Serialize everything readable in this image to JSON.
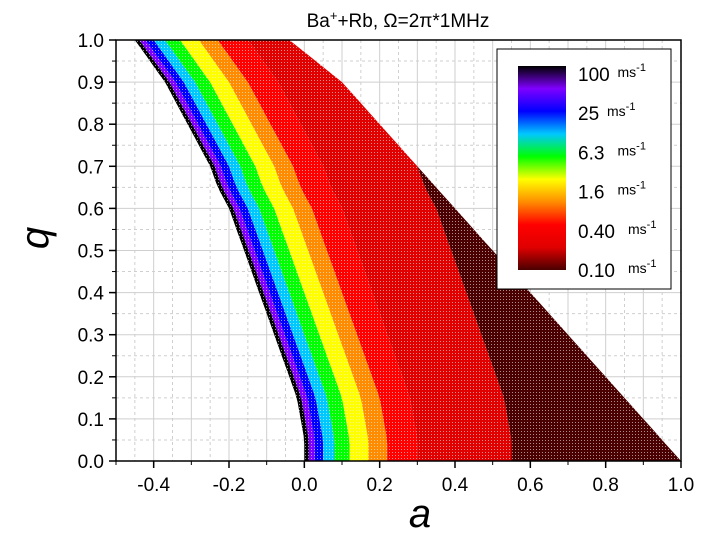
{
  "chart_data": {
    "type": "heatmap",
    "title_parts": [
      "Ba",
      "+",
      "+Rb, Ω=2π*1MHz"
    ],
    "xlabel": "a",
    "ylabel": "q",
    "xlim": [
      -0.5,
      1.0
    ],
    "ylim": [
      0.0,
      1.0
    ],
    "x_ticks": [
      "-0.4",
      "-0.2",
      "0.0",
      "0.2",
      "0.4",
      "0.6",
      "0.8",
      "1.0"
    ],
    "x_tick_values": [
      -0.4,
      -0.2,
      0.0,
      0.2,
      0.4,
      0.6,
      0.8,
      1.0
    ],
    "y_ticks": [
      "0.0",
      "0.1",
      "0.2",
      "0.3",
      "0.4",
      "0.5",
      "0.6",
      "0.7",
      "0.8",
      "0.9",
      "1.0"
    ],
    "y_tick_values": [
      0.0,
      0.1,
      0.2,
      0.3,
      0.4,
      0.5,
      0.6,
      0.7,
      0.8,
      0.9,
      1.0
    ],
    "grid": true,
    "stability_region": {
      "left_boundary": [
        [
          0.0,
          0.0
        ],
        [
          0.0,
          0.05
        ],
        [
          -0.01,
          0.1
        ],
        [
          -0.02,
          0.15
        ],
        [
          -0.04,
          0.2
        ],
        [
          -0.06,
          0.25
        ],
        [
          -0.08,
          0.3
        ],
        [
          -0.1,
          0.35
        ],
        [
          -0.12,
          0.4
        ],
        [
          -0.14,
          0.45
        ],
        [
          -0.16,
          0.5
        ],
        [
          -0.18,
          0.55
        ],
        [
          -0.2,
          0.6
        ],
        [
          -0.23,
          0.65
        ],
        [
          -0.25,
          0.7
        ],
        [
          -0.28,
          0.75
        ],
        [
          -0.31,
          0.8
        ],
        [
          -0.34,
          0.85
        ],
        [
          -0.37,
          0.9
        ],
        [
          -0.41,
          0.95
        ],
        [
          -0.45,
          1.0
        ]
      ],
      "right_boundary": [
        [
          1.0,
          0.0
        ],
        [
          0.9,
          0.1
        ],
        [
          0.8,
          0.2
        ],
        [
          0.7,
          0.3
        ],
        [
          0.6,
          0.4
        ],
        [
          0.5,
          0.5
        ],
        [
          0.4,
          0.6
        ],
        [
          0.3,
          0.7
        ],
        [
          0.2,
          0.8
        ],
        [
          0.1,
          0.9
        ],
        [
          -0.04,
          1.0
        ]
      ]
    },
    "colorbar": {
      "scale": "log",
      "labels": [
        {
          "value": "100",
          "unit": "ms",
          "exp": "-1"
        },
        {
          "value": "25",
          "unit": "ms",
          "exp": "-1"
        },
        {
          "value": "6.3",
          "unit": "ms",
          "exp": "-1"
        },
        {
          "value": "1.6",
          "unit": "ms",
          "exp": "-1"
        },
        {
          "value": "0.40",
          "unit": "ms",
          "exp": "-1"
        },
        {
          "value": "0.10",
          "unit": "ms",
          "exp": "-1"
        }
      ],
      "colors_top_to_bottom": [
        "#000000",
        "#7f00ff",
        "#0000ff",
        "#00c8ff",
        "#00ff00",
        "#ffff00",
        "#ff8c00",
        "#ff0000",
        "#e00000",
        "#4a0000"
      ]
    },
    "band_colors_left_to_right": [
      "#000000",
      "#7f00ff",
      "#0000ff",
      "#00c8ff",
      "#00ff00",
      "#ffff00",
      "#ff8c00",
      "#ff0000",
      "#e00000",
      "#4a0000"
    ]
  }
}
